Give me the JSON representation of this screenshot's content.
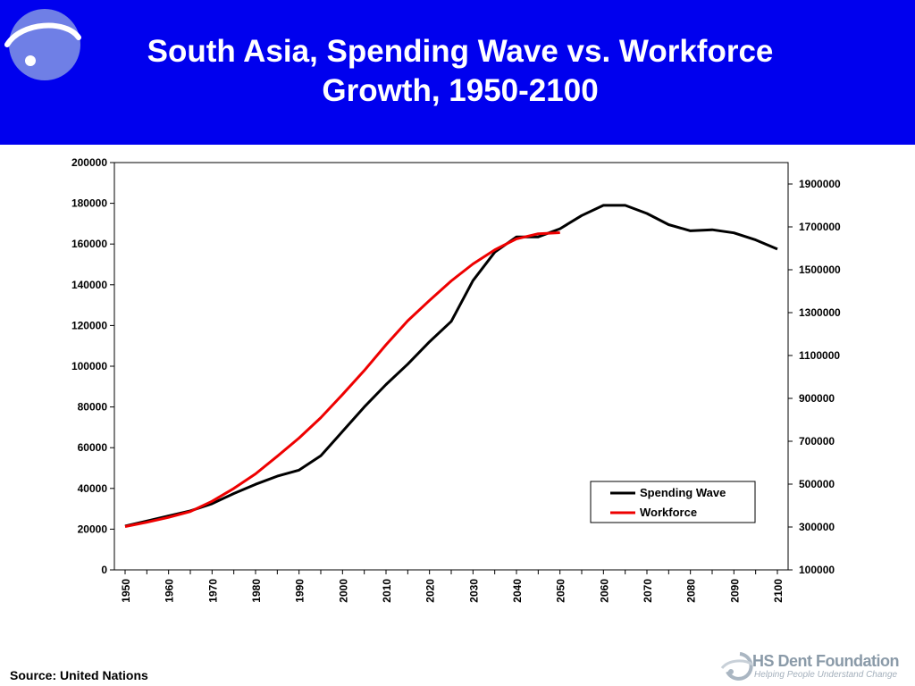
{
  "slide": {
    "title_line1": "South Asia, Spending Wave vs. Workforce",
    "title_line2": "Growth, 1950-2100",
    "source": "Source: United Nations",
    "brand_name": "HS Dent Foundation",
    "brand_tagline": "Helping People Understand Change",
    "header_color": "#0000ee"
  },
  "chart_data": {
    "type": "line",
    "grid": false,
    "legend_position": "bottom-right",
    "x": [
      1950,
      1955,
      1960,
      1965,
      1970,
      1975,
      1980,
      1985,
      1990,
      1995,
      2000,
      2005,
      2010,
      2015,
      2020,
      2025,
      2030,
      2035,
      2040,
      2045,
      2050,
      2055,
      2060,
      2065,
      2070,
      2075,
      2080,
      2085,
      2090,
      2095,
      2100
    ],
    "x_ticks": [
      "1950",
      "1960",
      "1970",
      "1980",
      "1990",
      "2000",
      "2010",
      "2020",
      "2030",
      "2040",
      "2050",
      "2060",
      "2070",
      "2080",
      "2090",
      "2100"
    ],
    "y_left": {
      "lim": [
        0,
        200000
      ],
      "ticks": [
        "0",
        "20000",
        "40000",
        "60000",
        "80000",
        "100000",
        "120000",
        "140000",
        "160000",
        "180000",
        "200000"
      ]
    },
    "y_right": {
      "lim": [
        100000,
        2000000
      ],
      "ticks": [
        "100000",
        "300000",
        "500000",
        "700000",
        "900000",
        "1100000",
        "1300000",
        "1500000",
        "1700000",
        "1900000"
      ]
    },
    "series": [
      {
        "name": "Spending Wave",
        "axis": "left",
        "color": "#000000",
        "values": [
          21500,
          24000,
          26500,
          29000,
          32500,
          37500,
          42000,
          46000,
          49000,
          56000,
          68000,
          80000,
          91000,
          101000,
          112000,
          122000,
          142000,
          156000,
          163500,
          163500,
          167500,
          174000,
          179000,
          179000,
          175000,
          169500,
          166500,
          167000,
          165500,
          162000,
          157500
        ]
      },
      {
        "name": "Workforce",
        "axis": "right",
        "color": "#ee0000",
        "values": [
          302000,
          322000,
          345000,
          372000,
          420000,
          480000,
          548000,
          630000,
          715000,
          810000,
          918000,
          1030000,
          1150000,
          1262000,
          1357000,
          1448000,
          1527000,
          1593000,
          1644000,
          1668000,
          1673000,
          null,
          null,
          null,
          null,
          null,
          null,
          null,
          null,
          null,
          null
        ]
      }
    ]
  }
}
